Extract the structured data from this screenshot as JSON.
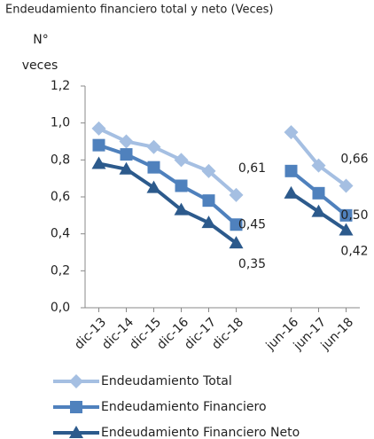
{
  "chart_data": {
    "type": "line",
    "title": "Endeudamiento financiero total y neto (Veces)",
    "y_label": [
      "N°",
      "veces"
    ],
    "categories": [
      "dic-13",
      "dic-14",
      "dic-15",
      "dic-16",
      "dic-17",
      "dic-18",
      null,
      "jun-16",
      "jun-17",
      "jun-18"
    ],
    "series": [
      {
        "name": "Endeudamiento Total",
        "color": "#a5bfe2",
        "marker": "diamond",
        "values": [
          0.97,
          0.9,
          0.87,
          0.8,
          0.74,
          0.61,
          null,
          0.95,
          0.77,
          0.66
        ],
        "value_labels": [
          null,
          null,
          null,
          null,
          null,
          "0,61",
          null,
          null,
          null,
          "0,66"
        ]
      },
      {
        "name": "Endeudamiento Financiero",
        "color": "#4f81bd",
        "marker": "square",
        "values": [
          0.88,
          0.83,
          0.76,
          0.66,
          0.58,
          0.45,
          null,
          0.74,
          0.62,
          0.5
        ],
        "value_labels": [
          null,
          null,
          null,
          null,
          null,
          "0,45",
          null,
          null,
          null,
          "0,50"
        ]
      },
      {
        "name": "Endeudamiento Financiero Neto",
        "color": "#2c5a8c",
        "marker": "triangle",
        "values": [
          0.78,
          0.75,
          0.65,
          0.53,
          0.46,
          0.35,
          null,
          0.62,
          0.52,
          0.42
        ],
        "value_labels": [
          null,
          null,
          null,
          null,
          null,
          "0,35",
          null,
          null,
          null,
          "0,42"
        ]
      }
    ],
    "ylim": [
      0,
      1.2
    ],
    "yticks": [
      {
        "value": 0,
        "label": "0,0"
      },
      {
        "value": 0.2,
        "label": "0,2"
      },
      {
        "value": 0.4,
        "label": "0,4"
      },
      {
        "value": 0.6,
        "label": "0,6"
      },
      {
        "value": 0.8,
        "label": "0,8"
      },
      {
        "value": 1.0,
        "label": "1,0"
      },
      {
        "value": 1.2,
        "label": "1,2"
      }
    ]
  }
}
